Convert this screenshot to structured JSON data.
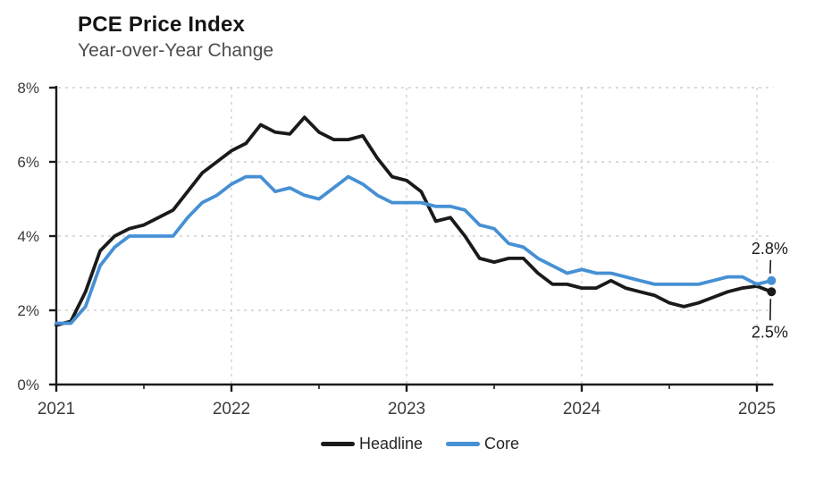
{
  "chart_data": {
    "type": "line",
    "title": "PCE Price Index",
    "subtitle": "Year-over-Year Change",
    "x_unit": "month",
    "x_start": "2021-01",
    "x_end": "2025-02",
    "x_tick_labels": [
      "2021",
      "2022",
      "2023",
      "2024",
      "2025"
    ],
    "y_ticks": [
      0,
      2,
      4,
      6,
      8
    ],
    "y_tick_labels": [
      "0%",
      "2%",
      "4%",
      "6%",
      "8%"
    ],
    "ylim": [
      0,
      8
    ],
    "grid": "dashed-light-gray",
    "legend_position": "bottom-center",
    "series": [
      {
        "name": "Headline",
        "color": "#1a1a1a",
        "values": [
          1.6,
          1.7,
          2.5,
          3.6,
          4.0,
          4.2,
          4.3,
          4.5,
          4.7,
          5.2,
          5.7,
          6.0,
          6.3,
          6.5,
          7.0,
          6.8,
          6.75,
          7.2,
          6.8,
          6.6,
          6.6,
          6.7,
          6.1,
          5.6,
          5.5,
          5.2,
          4.4,
          4.5,
          4.0,
          3.4,
          3.3,
          3.4,
          3.4,
          3.0,
          2.7,
          2.7,
          2.6,
          2.6,
          2.8,
          2.6,
          2.5,
          2.4,
          2.2,
          2.1,
          2.2,
          2.35,
          2.5,
          2.6,
          2.65,
          2.5
        ]
      },
      {
        "name": "Core",
        "color": "#4690d4",
        "values": [
          1.65,
          1.65,
          2.1,
          3.2,
          3.7,
          4.0,
          4.0,
          4.0,
          4.0,
          4.5,
          4.9,
          5.1,
          5.4,
          5.6,
          5.6,
          5.2,
          5.3,
          5.1,
          5.0,
          5.3,
          5.6,
          5.4,
          5.1,
          4.9,
          4.9,
          4.9,
          4.8,
          4.8,
          4.7,
          4.3,
          4.2,
          3.8,
          3.7,
          3.4,
          3.2,
          3.0,
          3.1,
          3.0,
          3.0,
          2.9,
          2.8,
          2.7,
          2.7,
          2.7,
          2.7,
          2.8,
          2.9,
          2.9,
          2.7,
          2.8
        ]
      }
    ],
    "annotations": [
      {
        "series": "Core",
        "label": "2.8%",
        "value": 2.8,
        "position": "above"
      },
      {
        "series": "Headline",
        "label": "2.5%",
        "value": 2.5,
        "position": "below"
      }
    ]
  },
  "colors": {
    "headline": "#1a1a1a",
    "core": "#4690d4",
    "grid": "#cfcfcf",
    "axis": "#1a1a1a"
  }
}
